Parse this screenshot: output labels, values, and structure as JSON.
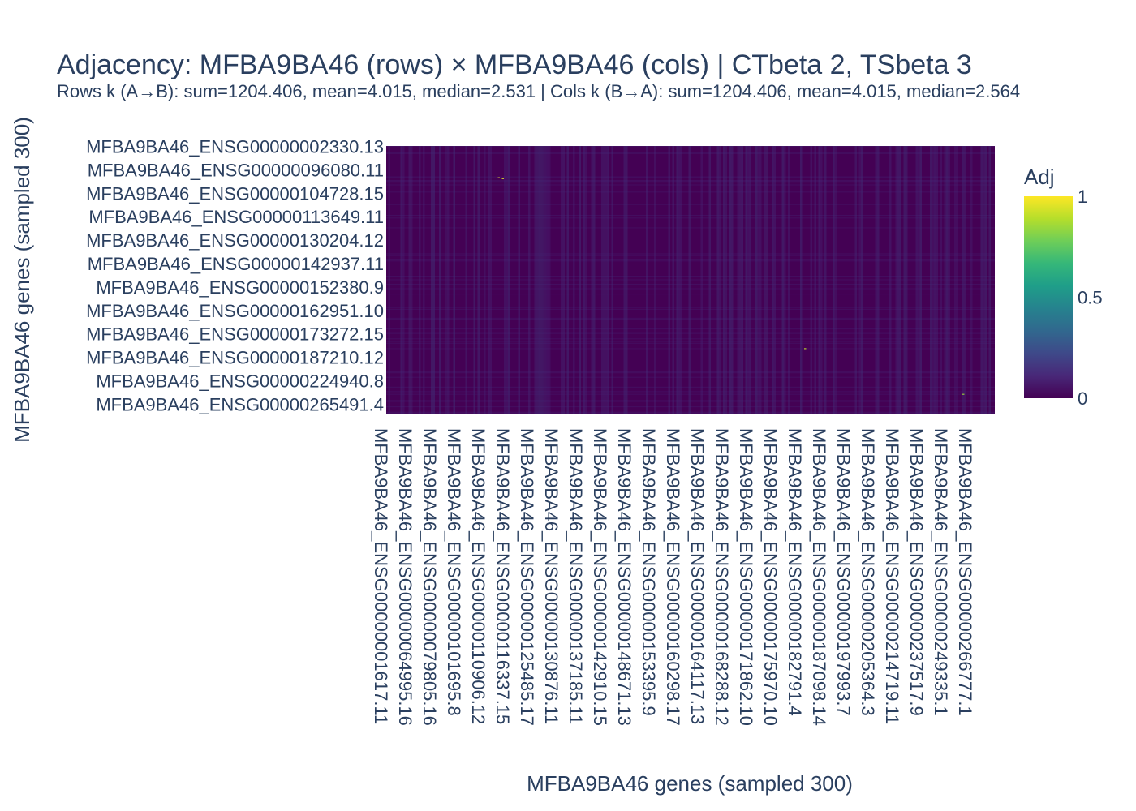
{
  "chart_data": {
    "type": "heatmap",
    "title": "Adjacency: MFBA9BA46 (rows) × MFBA9BA46 (cols) | CTbeta 2, TSbeta 3",
    "subtitle": "Rows k (A→B): sum=1204.406, mean=4.015, median=2.531 | Cols k (B→A): sum=1204.406, mean=4.015, median=2.564",
    "xlabel": "MFBA9BA46 genes (sampled 300)",
    "ylabel": "MFBA9BA46 genes (sampled 300)",
    "n_rows": 300,
    "n_cols": 300,
    "y_tick_labels": [
      "MFBA9BA46_ENSG00000002330.13",
      "MFBA9BA46_ENSG00000096080.11",
      "MFBA9BA46_ENSG00000104728.15",
      "MFBA9BA46_ENSG00000113649.11",
      "MFBA9BA46_ENSG00000130204.12",
      "MFBA9BA46_ENSG00000142937.11",
      "MFBA9BA46_ENSG00000152380.9",
      "MFBA9BA46_ENSG00000162951.10",
      "MFBA9BA46_ENSG00000173272.15",
      "MFBA9BA46_ENSG00000187210.12",
      "MFBA9BA46_ENSG00000224940.8",
      "MFBA9BA46_ENSG00000265491.4"
    ],
    "x_tick_labels": [
      "MFBA9BA46_ENSG00000001617.11",
      "MFBA9BA46_ENSG00000064995.16",
      "MFBA9BA46_ENSG00000079805.16",
      "MFBA9BA46_ENSG00000101695.8",
      "MFBA9BA46_ENSG00000110906.12",
      "MFBA9BA46_ENSG00000116337.15",
      "MFBA9BA46_ENSG00000125485.17",
      "MFBA9BA46_ENSG00000130876.11",
      "MFBA9BA46_ENSG00000137185.11",
      "MFBA9BA46_ENSG00000142910.15",
      "MFBA9BA46_ENSG00000148671.13",
      "MFBA9BA46_ENSG00000153395.9",
      "MFBA9BA46_ENSG00000160298.17",
      "MFBA9BA46_ENSG00000164117.13",
      "MFBA9BA46_ENSG00000168288.12",
      "MFBA9BA46_ENSG00000171862.10",
      "MFBA9BA46_ENSG00000175970.10",
      "MFBA9BA46_ENSG00000182791.4",
      "MFBA9BA46_ENSG00000187098.14",
      "MFBA9BA46_ENSG00000197993.7",
      "MFBA9BA46_ENSG00000205364.3",
      "MFBA9BA46_ENSG00000214719.11",
      "MFBA9BA46_ENSG00000237517.9",
      "MFBA9BA46_ENSG00000249335.1",
      "MFBA9BA46_ENSG00000266777.1"
    ],
    "colorbar": {
      "title": "Adj",
      "range": [
        0,
        1
      ],
      "ticks": [
        "0",
        "0.5",
        "1"
      ],
      "colorscale": "viridis"
    },
    "hotspots": [
      {
        "row": 35,
        "col": 55,
        "value": 1.0
      },
      {
        "row": 36,
        "col": 57,
        "value": 0.95
      },
      {
        "row": 226,
        "col": 206,
        "value": 0.9
      },
      {
        "row": 277,
        "col": 284,
        "value": 0.85
      }
    ],
    "background_value": 0.0
  }
}
